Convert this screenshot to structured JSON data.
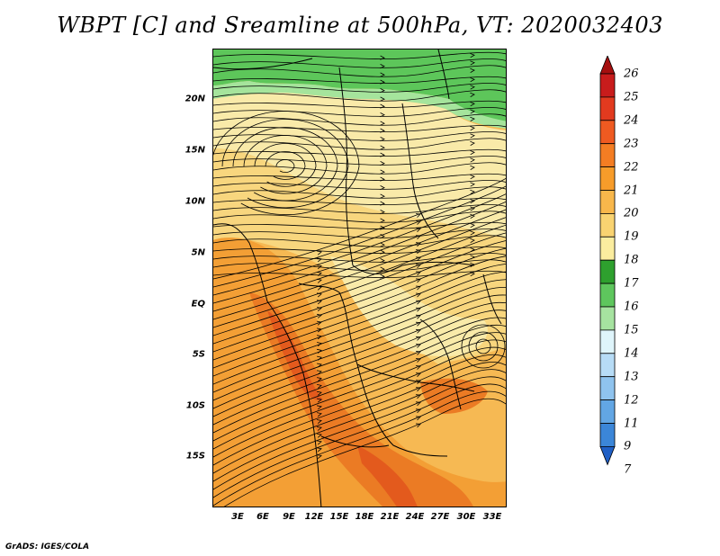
{
  "title": "WBPT [C] and Sreamline at 500hPa, VT: 2020032403",
  "credit": "GrADS: IGES/COLA",
  "map": {
    "variable": "wet-bulb potential temperature",
    "units": "C",
    "level": "500hPa",
    "valid_time": "2020032403",
    "lat_labels": [
      "20N",
      "15N",
      "10N",
      "5N",
      "EQ",
      "5S",
      "10S",
      "15S"
    ],
    "lon_labels": [
      "3E",
      "6E",
      "9E",
      "12E",
      "15E",
      "18E",
      "21E",
      "24E",
      "27E",
      "30E",
      "33E"
    ],
    "overlay": "streamlines",
    "colors": {
      "c16_17": "#a5e49c",
      "c17_18": "#5dc65a",
      "c18_19": "#f9eaa9",
      "c19_20": "#f8d67e",
      "c20_21": "#f6b953",
      "c21_22": "#f39f35",
      "c22_23": "#eb7b24",
      "c23_24": "#e35a1d"
    }
  },
  "colorbar": {
    "labels": [
      "26",
      "25",
      "24",
      "23",
      "22",
      "21",
      "20",
      "19",
      "18",
      "17",
      "16",
      "15",
      "14",
      "13",
      "12",
      "11",
      "9",
      "7"
    ],
    "colors": [
      "#a50f0f",
      "#c81c1c",
      "#e23a1f",
      "#ef5a21",
      "#f47d23",
      "#f79c2a",
      "#f8b74b",
      "#f9d371",
      "#fbed9f",
      "#2ea02e",
      "#5ec65d",
      "#a6e3a0",
      "#dff5fb",
      "#b7dcf6",
      "#8fc3ee",
      "#62a6e4",
      "#3b86d8",
      "#1f5fc5"
    ]
  }
}
